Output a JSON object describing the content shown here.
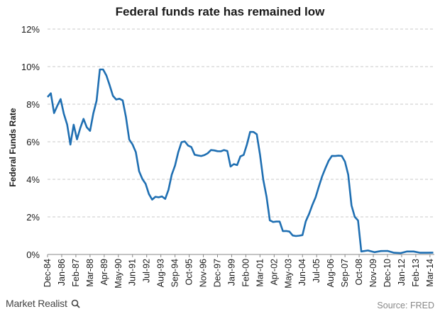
{
  "chart_data": {
    "type": "line",
    "title": "Federal funds rate has remained low",
    "ylabel": "Federal Funds Rate",
    "xlabel": "",
    "ylim": [
      0,
      12
    ],
    "yticks": [
      "0%",
      "2%",
      "4%",
      "6%",
      "8%",
      "10%",
      "12%"
    ],
    "x_tick_labels": [
      "Dec-84",
      "Jan-86",
      "Feb-87",
      "Mar-88",
      "Apr-89",
      "May-90",
      "Jun-91",
      "Jul-92",
      "Aug-93",
      "Sep-94",
      "Oct-95",
      "Nov-96",
      "Dec-97",
      "Jan-99",
      "Feb-00",
      "Mar-01",
      "Apr-02",
      "May-03",
      "Jun-04",
      "Jul-05",
      "Aug-06",
      "Sep-07",
      "Oct-08",
      "Nov-09",
      "Dec-10",
      "Jan-12",
      "Feb-13",
      "Mar-14"
    ],
    "grid": "horizontal dashed",
    "color": "#1f6fb2",
    "series": [
      {
        "x": [
          "1984-12",
          "1985-03",
          "1985-06",
          "1985-09",
          "1985-12",
          "1986-03",
          "1986-06",
          "1986-09",
          "1986-12",
          "1987-03",
          "1987-06",
          "1987-09",
          "1987-12",
          "1988-03",
          "1988-06",
          "1988-09",
          "1988-12",
          "1989-03",
          "1989-06",
          "1989-09",
          "1989-12",
          "1990-03",
          "1990-06",
          "1990-09",
          "1990-12",
          "1991-03",
          "1991-06",
          "1991-09",
          "1991-12",
          "1992-03",
          "1992-06",
          "1992-09",
          "1992-12",
          "1993-03",
          "1993-06",
          "1993-09",
          "1993-12",
          "1994-03",
          "1994-06",
          "1994-09",
          "1994-12",
          "1995-03",
          "1995-06",
          "1995-09",
          "1995-12",
          "1996-03",
          "1996-06",
          "1996-09",
          "1996-12",
          "1997-03",
          "1997-06",
          "1997-09",
          "1997-12",
          "1998-03",
          "1998-06",
          "1998-09",
          "1998-12",
          "1999-03",
          "1999-06",
          "1999-09",
          "1999-12",
          "2000-03",
          "2000-06",
          "2000-09",
          "2000-12",
          "2001-03",
          "2001-06",
          "2001-09",
          "2001-12",
          "2002-03",
          "2002-06",
          "2002-09",
          "2002-12",
          "2003-03",
          "2003-06",
          "2003-09",
          "2003-12",
          "2004-03",
          "2004-06",
          "2004-09",
          "2004-12",
          "2005-03",
          "2005-06",
          "2005-09",
          "2005-12",
          "2006-03",
          "2006-06",
          "2006-09",
          "2006-12",
          "2007-03",
          "2007-06",
          "2007-09",
          "2007-12",
          "2008-03",
          "2008-06",
          "2008-09",
          "2008-12",
          "2009-06",
          "2009-12",
          "2010-06",
          "2010-12",
          "2011-06",
          "2011-12",
          "2012-06",
          "2012-12",
          "2013-06",
          "2013-12",
          "2014-06"
        ],
        "values": [
          8.38,
          8.58,
          7.53,
          7.92,
          8.27,
          7.48,
          6.92,
          5.85,
          6.91,
          6.13,
          6.73,
          7.22,
          6.77,
          6.58,
          7.51,
          8.19,
          9.85,
          9.85,
          9.53,
          9.01,
          8.45,
          8.25,
          8.29,
          8.2,
          7.31,
          6.12,
          5.86,
          5.45,
          4.43,
          4.02,
          3.76,
          3.22,
          2.92,
          3.07,
          3.04,
          3.09,
          2.96,
          3.44,
          4.25,
          4.73,
          5.45,
          5.98,
          6.02,
          5.8,
          5.72,
          5.31,
          5.27,
          5.24,
          5.29,
          5.39,
          5.56,
          5.54,
          5.5,
          5.49,
          5.56,
          5.51,
          4.68,
          4.81,
          4.76,
          5.22,
          5.3,
          5.85,
          6.53,
          6.52,
          6.4,
          5.31,
          3.97,
          3.07,
          1.82,
          1.73,
          1.75,
          1.75,
          1.24,
          1.25,
          1.22,
          1.01,
          0.98,
          1.0,
          1.03,
          1.76,
          2.16,
          2.63,
          3.04,
          3.62,
          4.16,
          4.59,
          4.99,
          5.25,
          5.24,
          5.26,
          5.25,
          4.94,
          4.24,
          2.61,
          2.0,
          1.81,
          0.16,
          0.21,
          0.12,
          0.18,
          0.19,
          0.09,
          0.07,
          0.16,
          0.16,
          0.09,
          0.09,
          0.1
        ]
      }
    ]
  },
  "branding": {
    "name": "Market Realist",
    "icon": "magnifier-icon"
  },
  "source": "Source: FRED"
}
